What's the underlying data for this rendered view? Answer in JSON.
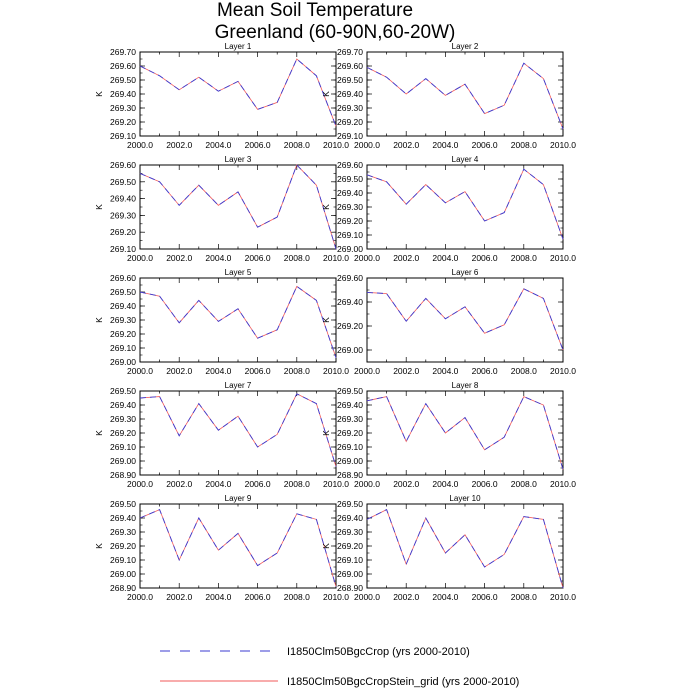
{
  "figure": {
    "title_line1": "Mean Soil Temperature",
    "title_line2": "Greenland (60-90N,60-20W)"
  },
  "legend": [
    {
      "name": "I1850Clm50BgcCrop (yrs 2000-2010)",
      "color": "#3b3bd1",
      "style": "dashed"
    },
    {
      "name": "I1850Clm50BgcCropStein_grid (yrs 2000-2010)",
      "color": "#f25a5a",
      "style": "solid"
    }
  ],
  "chart_data": [
    {
      "type": "line",
      "title": "Layer 1",
      "ylabel": "K",
      "xlim": [
        2000,
        2010
      ],
      "ylim": [
        269.1,
        269.7
      ],
      "xticks": [
        "2000.0",
        "2002.0",
        "2004.0",
        "2006.0",
        "2008.0",
        "2010.0"
      ],
      "yticks": [
        "269.10",
        "269.20",
        "269.30",
        "269.40",
        "269.50",
        "269.60",
        "269.70"
      ],
      "x": [
        2000,
        2001,
        2002,
        2003,
        2004,
        2005,
        2006,
        2007,
        2008,
        2009,
        2010
      ],
      "series": [
        {
          "name": "I1850Clm50BgcCrop (yrs 2000-2010)",
          "values": [
            269.6,
            269.53,
            269.43,
            269.52,
            269.42,
            269.49,
            269.29,
            269.34,
            269.65,
            269.53,
            269.17
          ]
        },
        {
          "name": "I1850Clm50BgcCropStein_grid (yrs 2000-2010)",
          "values": [
            269.6,
            269.53,
            269.43,
            269.52,
            269.42,
            269.49,
            269.29,
            269.34,
            269.65,
            269.53,
            269.17
          ]
        }
      ]
    },
    {
      "type": "line",
      "title": "Layer 2",
      "ylabel": "K",
      "xlim": [
        2000,
        2010
      ],
      "ylim": [
        269.1,
        269.7
      ],
      "xticks": [
        "2000.0",
        "2002.0",
        "2004.0",
        "2006.0",
        "2008.0",
        "2010.0"
      ],
      "yticks": [
        "269.10",
        "269.20",
        "269.30",
        "269.40",
        "269.50",
        "269.60",
        "269.70"
      ],
      "x": [
        2000,
        2001,
        2002,
        2003,
        2004,
        2005,
        2006,
        2007,
        2008,
        2009,
        2010
      ],
      "series": [
        {
          "name": "I1850Clm50BgcCrop (yrs 2000-2010)",
          "values": [
            269.59,
            269.52,
            269.4,
            269.51,
            269.39,
            269.47,
            269.26,
            269.32,
            269.62,
            269.51,
            269.15
          ]
        },
        {
          "name": "I1850Clm50BgcCropStein_grid (yrs 2000-2010)",
          "values": [
            269.59,
            269.52,
            269.4,
            269.51,
            269.39,
            269.47,
            269.26,
            269.32,
            269.62,
            269.51,
            269.15
          ]
        }
      ]
    },
    {
      "type": "line",
      "title": "Layer 3",
      "ylabel": "K",
      "xlim": [
        2000,
        2010
      ],
      "ylim": [
        269.1,
        269.6
      ],
      "xticks": [
        "2000.0",
        "2002.0",
        "2004.0",
        "2006.0",
        "2008.0",
        "2010.0"
      ],
      "yticks": [
        "269.10",
        "269.20",
        "269.30",
        "269.40",
        "269.50",
        "269.60"
      ],
      "x": [
        2000,
        2001,
        2002,
        2003,
        2004,
        2005,
        2006,
        2007,
        2008,
        2009,
        2010
      ],
      "series": [
        {
          "name": "I1850Clm50BgcCrop (yrs 2000-2010)",
          "values": [
            269.55,
            269.5,
            269.36,
            269.48,
            269.36,
            269.44,
            269.23,
            269.29,
            269.6,
            269.48,
            269.1
          ]
        },
        {
          "name": "I1850Clm50BgcCropStein_grid (yrs 2000-2010)",
          "values": [
            269.55,
            269.5,
            269.36,
            269.48,
            269.36,
            269.44,
            269.23,
            269.29,
            269.6,
            269.48,
            269.1
          ]
        }
      ]
    },
    {
      "type": "line",
      "title": "Layer 4",
      "ylabel": "K",
      "xlim": [
        2000,
        2010
      ],
      "ylim": [
        269.0,
        269.6
      ],
      "xticks": [
        "2000.0",
        "2002.0",
        "2004.0",
        "2006.0",
        "2008.0",
        "2010.0"
      ],
      "yticks": [
        "269.00",
        "269.10",
        "269.20",
        "269.30",
        "269.40",
        "269.50",
        "269.60"
      ],
      "x": [
        2000,
        2001,
        2002,
        2003,
        2004,
        2005,
        2006,
        2007,
        2008,
        2009,
        2010
      ],
      "series": [
        {
          "name": "I1850Clm50BgcCrop (yrs 2000-2010)",
          "values": [
            269.53,
            269.48,
            269.32,
            269.46,
            269.33,
            269.41,
            269.2,
            269.26,
            269.57,
            269.46,
            269.07
          ]
        },
        {
          "name": "I1850Clm50BgcCropStein_grid (yrs 2000-2010)",
          "values": [
            269.53,
            269.48,
            269.32,
            269.46,
            269.33,
            269.41,
            269.2,
            269.26,
            269.57,
            269.46,
            269.07
          ]
        }
      ]
    },
    {
      "type": "line",
      "title": "Layer 5",
      "ylabel": "K",
      "xlim": [
        2000,
        2010
      ],
      "ylim": [
        269.0,
        269.6
      ],
      "xticks": [
        "2000.0",
        "2002.0",
        "2004.0",
        "2006.0",
        "2008.0",
        "2010.0"
      ],
      "yticks": [
        "269.00",
        "269.10",
        "269.20",
        "269.30",
        "269.40",
        "269.50",
        "269.60"
      ],
      "x": [
        2000,
        2001,
        2002,
        2003,
        2004,
        2005,
        2006,
        2007,
        2008,
        2009,
        2010
      ],
      "series": [
        {
          "name": "I1850Clm50BgcCrop (yrs 2000-2010)",
          "values": [
            269.5,
            269.47,
            269.28,
            269.44,
            269.29,
            269.38,
            269.17,
            269.23,
            269.54,
            269.44,
            269.03
          ]
        },
        {
          "name": "I1850Clm50BgcCropStein_grid (yrs 2000-2010)",
          "values": [
            269.5,
            269.47,
            269.28,
            269.44,
            269.29,
            269.38,
            269.17,
            269.23,
            269.54,
            269.44,
            269.03
          ]
        }
      ]
    },
    {
      "type": "line",
      "title": "Layer 6",
      "ylabel": "K",
      "xlim": [
        2000,
        2010
      ],
      "ylim": [
        268.9,
        269.6
      ],
      "xticks": [
        "2000.0",
        "2002.0",
        "2004.0",
        "2006.0",
        "2008.0",
        "2010.0"
      ],
      "yticks": [
        "269.00",
        "269.20",
        "269.40",
        "269.60"
      ],
      "x": [
        2000,
        2001,
        2002,
        2003,
        2004,
        2005,
        2006,
        2007,
        2008,
        2009,
        2010
      ],
      "series": [
        {
          "name": "I1850Clm50BgcCrop (yrs 2000-2010)",
          "values": [
            269.48,
            269.47,
            269.24,
            269.43,
            269.26,
            269.36,
            269.14,
            269.21,
            269.51,
            269.43,
            269.0
          ]
        },
        {
          "name": "I1850Clm50BgcCropStein_grid (yrs 2000-2010)",
          "values": [
            269.48,
            269.47,
            269.24,
            269.43,
            269.26,
            269.36,
            269.14,
            269.21,
            269.51,
            269.43,
            269.0
          ]
        }
      ]
    },
    {
      "type": "line",
      "title": "Layer 7",
      "ylabel": "K",
      "xlim": [
        2000,
        2010
      ],
      "ylim": [
        268.9,
        269.5
      ],
      "xticks": [
        "2000.0",
        "2002.0",
        "2004.0",
        "2006.0",
        "2008.0",
        "2010.0"
      ],
      "yticks": [
        "268.90",
        "269.00",
        "269.10",
        "269.20",
        "269.30",
        "269.40",
        "269.50"
      ],
      "x": [
        2000,
        2001,
        2002,
        2003,
        2004,
        2005,
        2006,
        2007,
        2008,
        2009,
        2010
      ],
      "series": [
        {
          "name": "I1850Clm50BgcCrop (yrs 2000-2010)",
          "values": [
            269.45,
            269.46,
            269.18,
            269.41,
            269.22,
            269.32,
            269.1,
            269.19,
            269.48,
            269.41,
            268.96
          ]
        },
        {
          "name": "I1850Clm50BgcCropStein_grid (yrs 2000-2010)",
          "values": [
            269.45,
            269.46,
            269.18,
            269.41,
            269.22,
            269.32,
            269.1,
            269.19,
            269.48,
            269.41,
            268.96
          ]
        }
      ]
    },
    {
      "type": "line",
      "title": "Layer 8",
      "ylabel": "K",
      "xlim": [
        2000,
        2010
      ],
      "ylim": [
        268.9,
        269.5
      ],
      "xticks": [
        "2000.0",
        "2002.0",
        "2004.0",
        "2006.0",
        "2008.0",
        "2010.0"
      ],
      "yticks": [
        "268.90",
        "269.00",
        "269.10",
        "269.20",
        "269.30",
        "269.40",
        "269.50"
      ],
      "x": [
        2000,
        2001,
        2002,
        2003,
        2004,
        2005,
        2006,
        2007,
        2008,
        2009,
        2010
      ],
      "series": [
        {
          "name": "I1850Clm50BgcCrop (yrs 2000-2010)",
          "values": [
            269.43,
            269.46,
            269.14,
            269.41,
            269.2,
            269.31,
            269.08,
            269.17,
            269.46,
            269.4,
            268.94
          ]
        },
        {
          "name": "I1850Clm50BgcCropStein_grid (yrs 2000-2010)",
          "values": [
            269.43,
            269.46,
            269.14,
            269.41,
            269.2,
            269.31,
            269.08,
            269.17,
            269.46,
            269.4,
            268.94
          ]
        }
      ]
    },
    {
      "type": "line",
      "title": "Layer 9",
      "ylabel": "K",
      "xlim": [
        2000,
        2010
      ],
      "ylim": [
        268.9,
        269.5
      ],
      "xticks": [
        "2000.0",
        "2002.0",
        "2004.0",
        "2006.0",
        "2008.0",
        "2010.0"
      ],
      "yticks": [
        "268.90",
        "269.00",
        "269.10",
        "269.20",
        "269.30",
        "269.40",
        "269.50"
      ],
      "x": [
        2000,
        2001,
        2002,
        2003,
        2004,
        2005,
        2006,
        2007,
        2008,
        2009,
        2010
      ],
      "series": [
        {
          "name": "I1850Clm50BgcCrop (yrs 2000-2010)",
          "values": [
            269.4,
            269.46,
            269.1,
            269.4,
            269.17,
            269.29,
            269.06,
            269.15,
            269.43,
            269.39,
            268.91
          ]
        },
        {
          "name": "I1850Clm50BgcCropStein_grid (yrs 2000-2010)",
          "values": [
            269.4,
            269.46,
            269.1,
            269.4,
            269.17,
            269.29,
            269.06,
            269.15,
            269.43,
            269.39,
            268.91
          ]
        }
      ]
    },
    {
      "type": "line",
      "title": "Layer 10",
      "ylabel": "K",
      "xlim": [
        2000,
        2010
      ],
      "ylim": [
        268.9,
        269.5
      ],
      "xticks": [
        "2000.0",
        "2002.0",
        "2004.0",
        "2006.0",
        "2008.0",
        "2010.0"
      ],
      "yticks": [
        "268.90",
        "269.00",
        "269.10",
        "269.20",
        "269.30",
        "269.40",
        "269.50"
      ],
      "x": [
        2000,
        2001,
        2002,
        2003,
        2004,
        2005,
        2006,
        2007,
        2008,
        2009,
        2010
      ],
      "series": [
        {
          "name": "I1850Clm50BgcCrop (yrs 2000-2010)",
          "values": [
            269.39,
            269.46,
            269.07,
            269.4,
            269.15,
            269.28,
            269.05,
            269.14,
            269.41,
            269.39,
            268.9
          ]
        },
        {
          "name": "I1850Clm50BgcCropStein_grid (yrs 2000-2010)",
          "values": [
            269.39,
            269.46,
            269.07,
            269.4,
            269.15,
            269.28,
            269.05,
            269.14,
            269.41,
            269.39,
            268.9
          ]
        }
      ]
    }
  ]
}
